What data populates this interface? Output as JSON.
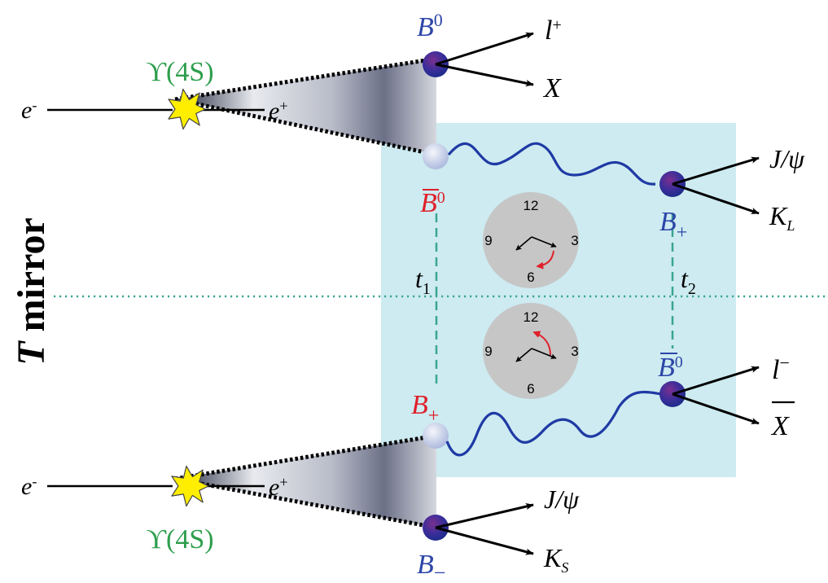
{
  "colors": {
    "background": "#ffffff",
    "panel": "#cdebf1",
    "upsilon_label": "#2e9e4d",
    "b_blue": "#2d46a8",
    "b_red": "#e0202a",
    "mirror_line": "#3aa592",
    "time_dash": "#3aa592",
    "clock_face": "#c6c6c6",
    "clock_arrow": "#e0202a",
    "wavy_line": "#1f3aa4",
    "explosion": "#ffee00",
    "cone_dark": "#5f6478"
  },
  "mirror_label": {
    "bold": "T",
    "rest": " mirror"
  },
  "top_event": {
    "beam_electron": {
      "base": "e",
      "sup": "-"
    },
    "beam_positron": {
      "base": "e",
      "sup": "+"
    },
    "resonance": "ϒ(4S)",
    "b_upper": {
      "base": "B",
      "sup": "0"
    },
    "b_upper_products": [
      {
        "base": "l",
        "sup": "+"
      },
      {
        "base": "X"
      }
    ],
    "b_lower": {
      "base": "B",
      "sup": "0",
      "bar": true
    },
    "b_decayed": {
      "base": "B",
      "sub": "+"
    },
    "b_decayed_products": [
      {
        "base": "J/ψ"
      },
      {
        "base": "K",
        "sub": "L"
      }
    ]
  },
  "bottom_event": {
    "beam_electron": {
      "base": "e",
      "sup": "-"
    },
    "beam_positron": {
      "base": "e",
      "sup": "+"
    },
    "resonance": "ϒ(4S)",
    "b_upper": {
      "base": "B",
      "sub": "+"
    },
    "b_lower": {
      "base": "B",
      "sub": "−"
    },
    "b_lower_products": [
      {
        "base": "J/ψ"
      },
      {
        "base": "K",
        "sub": "S"
      }
    ],
    "b_decayed": {
      "base": "B",
      "sup": "0",
      "bar": true
    },
    "b_decayed_products": [
      {
        "base": "l",
        "sup": "−"
      },
      {
        "base": "X",
        "bar": true
      }
    ]
  },
  "times": [
    {
      "base": "t",
      "sub": "1"
    },
    {
      "base": "t",
      "sub": "2"
    }
  ],
  "clocks": [
    {
      "numbers": [
        "12",
        "3",
        "6",
        "9"
      ],
      "arrow": "forward"
    },
    {
      "numbers": [
        "12",
        "3",
        "6",
        "9"
      ],
      "arrow": "backward"
    }
  ]
}
